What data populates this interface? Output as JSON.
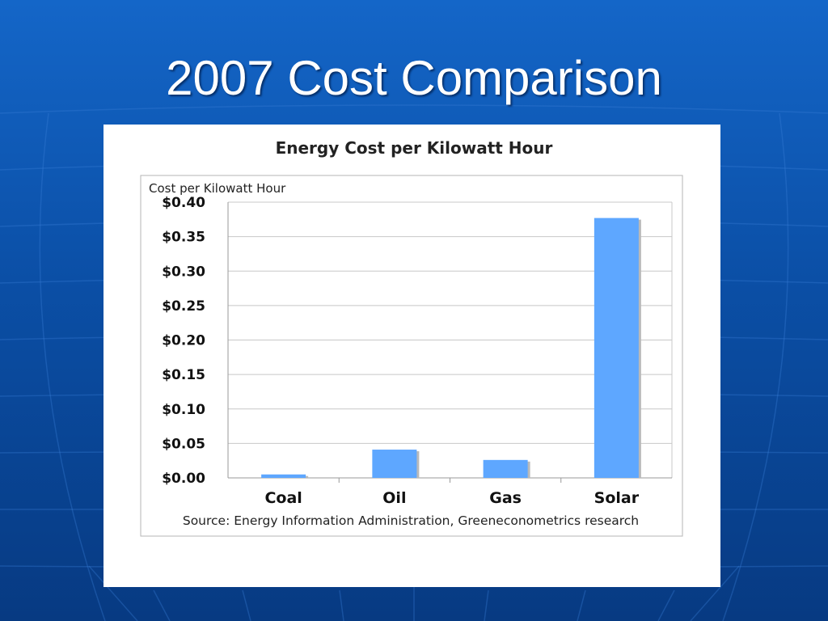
{
  "slide": {
    "title": "2007 Cost Comparison"
  },
  "colors": {
    "background": "#0b4fa6",
    "bar": "#5ea7ff",
    "bar_shadow": "#b9b9b9",
    "grid": "#c8c8c8"
  },
  "chart_data": {
    "type": "bar",
    "title": "Energy Cost per Kilowatt Hour",
    "ylabel": "Cost per Kilowatt Hour",
    "xlabel": "",
    "categories": [
      "Coal",
      "Oil",
      "Gas",
      "Solar"
    ],
    "values": [
      0.005,
      0.041,
      0.026,
      0.377
    ],
    "ylim": [
      0,
      0.4
    ],
    "yticks": [
      0.0,
      0.05,
      0.1,
      0.15,
      0.2,
      0.25,
      0.3,
      0.35,
      0.4
    ],
    "ytick_labels": [
      "$0.00",
      "$0.05",
      "$0.10",
      "$0.15",
      "$0.20",
      "$0.25",
      "$0.30",
      "$0.35",
      "$0.40"
    ],
    "grid": true,
    "source": "Source: Energy Information Administration, Greeneconometrics research"
  }
}
